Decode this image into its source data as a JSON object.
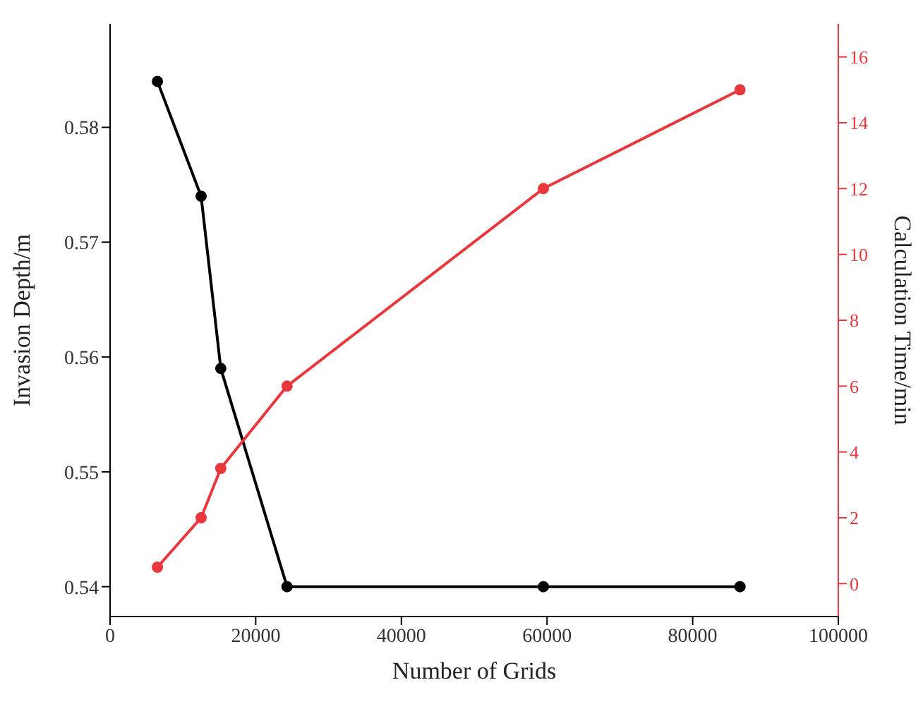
{
  "chart_data": {
    "type": "line",
    "xlabel": "Number of Grids",
    "ylabel": "Invasion Depth/m",
    "y2label": "Calculation Time/min",
    "x": [
      6500,
      12500,
      15200,
      24300,
      59500,
      86500
    ],
    "series": [
      {
        "color": "#000000",
        "values": [
          0.584,
          0.574,
          0.559,
          0.54,
          0.54,
          0.54
        ]
      },
      {
        "color": "#e8383d",
        "axis": "y2",
        "values": [
          0.5,
          2,
          3.5,
          6,
          12,
          15
        ]
      }
    ],
    "xlim": [
      0,
      100000
    ],
    "xticks": [
      0,
      20000,
      40000,
      60000,
      80000,
      100000
    ],
    "ylim": [
      0.5374,
      0.589
    ],
    "yticks": [
      0.54,
      0.55,
      0.56,
      0.57,
      0.58
    ],
    "y2lim": [
      -1,
      17
    ],
    "y2ticks": [
      0,
      2,
      4,
      6,
      8,
      10,
      12,
      14,
      16
    ],
    "marker": "circle",
    "line_style": "solid"
  }
}
